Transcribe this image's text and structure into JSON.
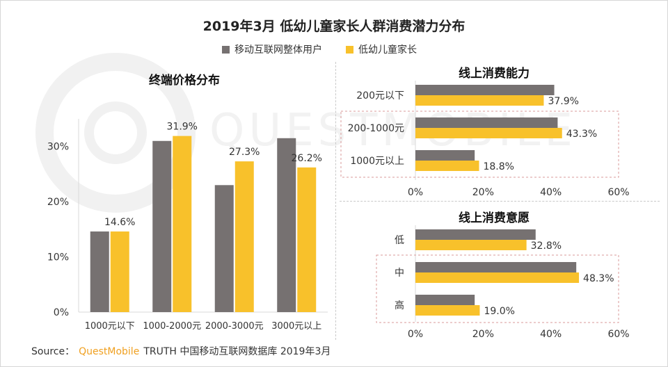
{
  "title": "2019年3月 低幼儿童家长人群消费潜力分布",
  "legend": [
    {
      "name": "移动互联网整体用户",
      "color": "#767171"
    },
    {
      "name": "低幼儿童家长",
      "color": "#F8C12B"
    }
  ],
  "source": {
    "prefix": "Source：",
    "brand": "QuestMobile",
    "rest": "TRUTH 中国移动互联网数据库 2019年3月"
  },
  "watermark": "QUESTMOBILE",
  "chart_data": [
    {
      "type": "bar",
      "title": "终端价格分布",
      "categories": [
        "1000元以下",
        "1000-2000元",
        "2000-3000元",
        "3000元以上"
      ],
      "series": [
        {
          "name": "移动互联网整体用户",
          "values": [
            14.6,
            31.0,
            23.0,
            31.5
          ]
        },
        {
          "name": "低幼儿童家长",
          "values": [
            14.6,
            31.9,
            27.3,
            26.2
          ]
        }
      ],
      "data_labels": [
        "14.6%",
        "31.9%",
        "27.3%",
        "26.2%"
      ],
      "yticks": [
        "0%",
        "10%",
        "20%",
        "30%"
      ],
      "ylim": [
        0,
        35
      ]
    },
    {
      "type": "bar",
      "orientation": "horizontal",
      "title": "线上消费能力",
      "categories": [
        "200元以下",
        "200-1000元",
        "1000元以上"
      ],
      "series": [
        {
          "name": "移动互联网整体用户",
          "values": [
            41.0,
            42.0,
            17.5
          ]
        },
        {
          "name": "低幼儿童家长",
          "values": [
            37.9,
            43.3,
            18.8
          ]
        }
      ],
      "data_labels": [
        "37.9%",
        "43.3%",
        "18.8%"
      ],
      "xticks": [
        "0%",
        "20%",
        "40%",
        "60%"
      ],
      "xlim": [
        0,
        60
      ],
      "highlight": "200-1000元"
    },
    {
      "type": "bar",
      "orientation": "horizontal",
      "title": "线上消费意愿",
      "categories": [
        "低",
        "中",
        "高"
      ],
      "series": [
        {
          "name": "移动互联网整体用户",
          "values": [
            35.5,
            47.5,
            17.5
          ]
        },
        {
          "name": "低幼儿童家长",
          "values": [
            32.8,
            48.3,
            19.0
          ]
        }
      ],
      "data_labels": [
        "32.8%",
        "48.3%",
        "19.0%"
      ],
      "xticks": [
        "0%",
        "20%",
        "40%",
        "60%"
      ],
      "xlim": [
        0,
        60
      ],
      "highlight": "中"
    }
  ]
}
